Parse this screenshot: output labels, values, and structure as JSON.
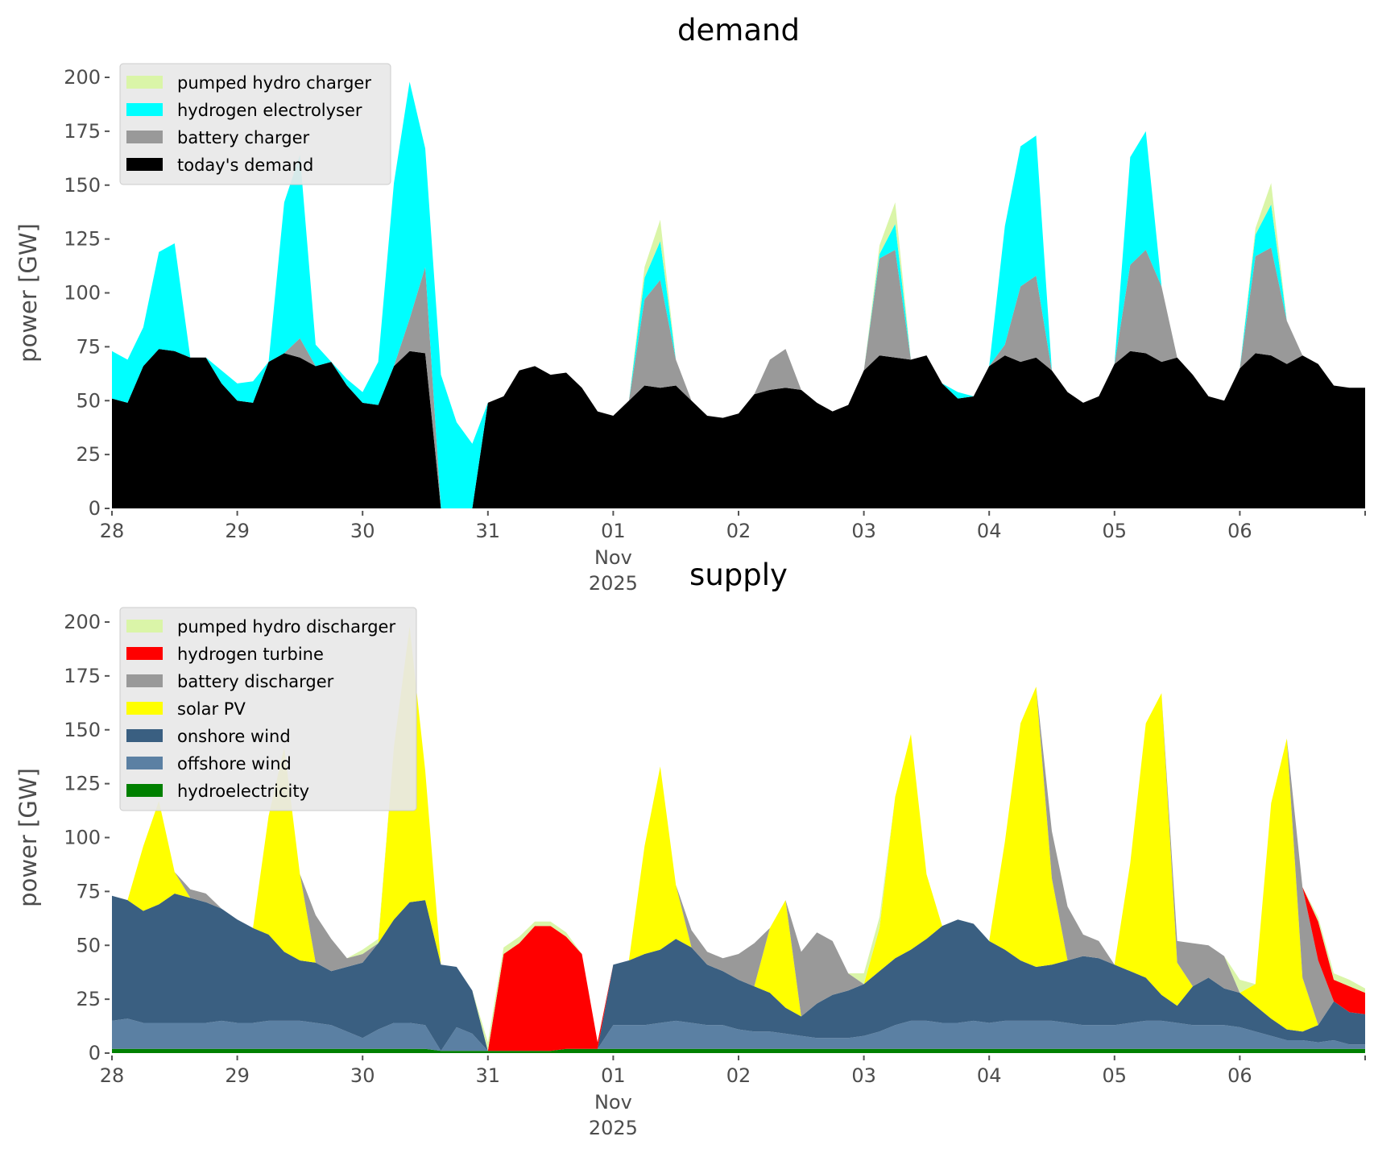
{
  "chart_data": [
    {
      "type": "area",
      "stacked": true,
      "title": "demand",
      "xlabel": "",
      "ylabel": "power [GW]",
      "ylim": [
        0,
        200
      ],
      "yticks": [
        "0",
        "25",
        "50",
        "75",
        "100",
        "125",
        "150",
        "175",
        "200"
      ],
      "xticks": [
        "28",
        "29",
        "30",
        "31",
        "01",
        "02",
        "03",
        "04",
        "05",
        "06"
      ],
      "xtick_sub": [
        "Nov",
        "2025"
      ],
      "x_unit": "hours since 28 Oct 2025 00:00 (3-hourly samples)",
      "grid": false,
      "legend_position": "top-left",
      "series": [
        {
          "name": "today's demand",
          "color": "#000000",
          "values": [
            51,
            49,
            66,
            74,
            73,
            70,
            70,
            58,
            50,
            49,
            68,
            72,
            70,
            66,
            68,
            57,
            49,
            48,
            66,
            73,
            72,
            0,
            0,
            0,
            49,
            52,
            64,
            66,
            62,
            63,
            56,
            45,
            43,
            50,
            57,
            56,
            57,
            50,
            43,
            42,
            44,
            53,
            55,
            56,
            55,
            49,
            45,
            48,
            64,
            71,
            70,
            69,
            71,
            58,
            51,
            52,
            66,
            71,
            68,
            70,
            64,
            54,
            49,
            52,
            67,
            73,
            72,
            68,
            70,
            62,
            52,
            50,
            65,
            72,
            71,
            67,
            71,
            67,
            57,
            56,
            56
          ]
        },
        {
          "name": "battery charger",
          "color": "#999999",
          "values": [
            0,
            0,
            0,
            0,
            0,
            0,
            0,
            0,
            0,
            0,
            0,
            0,
            9,
            0,
            0,
            0,
            0,
            0,
            0,
            15,
            40,
            0,
            0,
            0,
            0,
            0,
            0,
            0,
            0,
            0,
            0,
            0,
            0,
            0,
            40,
            50,
            12,
            0,
            0,
            0,
            0,
            0,
            14,
            18,
            0,
            0,
            0,
            0,
            0,
            45,
            50,
            0,
            0,
            0,
            0,
            0,
            0,
            5,
            35,
            38,
            0,
            0,
            0,
            0,
            0,
            40,
            48,
            35,
            0,
            0,
            0,
            0,
            0,
            45,
            50,
            20,
            0,
            0,
            0,
            0,
            0
          ]
        },
        {
          "name": "hydrogen electrolyser",
          "color": "#00ffff",
          "values": [
            22,
            20,
            18,
            45,
            50,
            0,
            0,
            6,
            8,
            10,
            0,
            70,
            85,
            10,
            0,
            3,
            5,
            20,
            85,
            110,
            55,
            62,
            40,
            30,
            0,
            0,
            0,
            0,
            0,
            0,
            0,
            0,
            0,
            0,
            10,
            18,
            0,
            0,
            0,
            0,
            0,
            0,
            0,
            0,
            0,
            0,
            0,
            0,
            0,
            2,
            12,
            0,
            0,
            0,
            3,
            0,
            0,
            55,
            65,
            65,
            0,
            0,
            0,
            0,
            0,
            50,
            55,
            0,
            0,
            0,
            0,
            0,
            0,
            10,
            20,
            0,
            0,
            0,
            0,
            0,
            0
          ]
        },
        {
          "name": "pumped hydro charger",
          "color": "#daf5a8",
          "values": [
            0,
            0,
            0,
            0,
            0,
            0,
            0,
            0,
            0,
            0,
            0,
            0,
            0,
            0,
            0,
            0,
            0,
            0,
            0,
            0,
            0,
            0,
            0,
            0,
            0,
            0,
            0,
            0,
            0,
            0,
            0,
            0,
            0,
            0,
            5,
            10,
            0,
            0,
            0,
            0,
            0,
            0,
            0,
            0,
            0,
            0,
            0,
            0,
            0,
            4,
            10,
            0,
            0,
            0,
            0,
            0,
            0,
            0,
            0,
            0,
            0,
            0,
            0,
            0,
            0,
            0,
            0,
            0,
            0,
            0,
            0,
            0,
            0,
            3,
            10,
            0,
            0,
            0,
            0,
            0,
            0
          ]
        }
      ]
    },
    {
      "type": "area",
      "stacked": true,
      "title": "supply",
      "xlabel": "",
      "ylabel": "power [GW]",
      "ylim": [
        0,
        200
      ],
      "yticks": [
        "0",
        "25",
        "50",
        "75",
        "100",
        "125",
        "150",
        "175",
        "200"
      ],
      "xticks": [
        "28",
        "29",
        "30",
        "31",
        "01",
        "02",
        "03",
        "04",
        "05",
        "06"
      ],
      "xtick_sub": [
        "Nov",
        "2025"
      ],
      "x_unit": "hours since 28 Oct 2025 00:00 (3-hourly samples)",
      "grid": false,
      "legend_position": "top-left",
      "series": [
        {
          "name": "hydroelectricity",
          "color": "#008000",
          "values": [
            2,
            2,
            2,
            2,
            2,
            2,
            2,
            2,
            2,
            2,
            2,
            2,
            2,
            2,
            2,
            2,
            2,
            2,
            2,
            2,
            2,
            1,
            1,
            1,
            1,
            1,
            1,
            1,
            1,
            2,
            2,
            2,
            2,
            2,
            2,
            2,
            2,
            2,
            2,
            2,
            2,
            2,
            2,
            2,
            2,
            2,
            2,
            2,
            2,
            2,
            2,
            2,
            2,
            2,
            2,
            2,
            2,
            2,
            2,
            2,
            2,
            2,
            2,
            2,
            2,
            2,
            2,
            2,
            2,
            2,
            2,
            2,
            2,
            2,
            2,
            2,
            2,
            2,
            2,
            2,
            2
          ]
        },
        {
          "name": "offshore wind",
          "color": "#5b80a3",
          "values": [
            13,
            14,
            12,
            12,
            12,
            12,
            12,
            13,
            12,
            12,
            13,
            13,
            13,
            12,
            11,
            8,
            5,
            9,
            12,
            12,
            11,
            0,
            11,
            8,
            0,
            0,
            0,
            0,
            0,
            0,
            0,
            0,
            11,
            11,
            11,
            12,
            13,
            12,
            11,
            11,
            9,
            8,
            8,
            7,
            6,
            5,
            5,
            5,
            6,
            8,
            11,
            13,
            13,
            12,
            12,
            13,
            12,
            13,
            13,
            13,
            13,
            12,
            11,
            11,
            11,
            12,
            13,
            13,
            12,
            11,
            11,
            11,
            10,
            8,
            6,
            4,
            4,
            3,
            4,
            2,
            2
          ]
        },
        {
          "name": "onshore wind",
          "color": "#3a5f81",
          "values": [
            58,
            55,
            52,
            55,
            60,
            58,
            56,
            52,
            48,
            44,
            40,
            32,
            28,
            28,
            25,
            30,
            35,
            40,
            48,
            56,
            58,
            40,
            28,
            20,
            0,
            0,
            0,
            0,
            0,
            0,
            0,
            0,
            28,
            30,
            33,
            34,
            38,
            35,
            28,
            25,
            23,
            21,
            18,
            12,
            9,
            16,
            20,
            22,
            24,
            28,
            31,
            33,
            38,
            45,
            48,
            45,
            38,
            33,
            28,
            25,
            26,
            29,
            32,
            31,
            28,
            24,
            20,
            12,
            8,
            18,
            22,
            17,
            16,
            12,
            8,
            5,
            4,
            8,
            18,
            15,
            14
          ]
        },
        {
          "name": "solar PV",
          "color": "#ffff00",
          "values": [
            0,
            0,
            30,
            48,
            10,
            0,
            0,
            0,
            0,
            0,
            55,
            95,
            40,
            0,
            0,
            0,
            0,
            0,
            80,
            128,
            60,
            0,
            0,
            0,
            0,
            0,
            0,
            0,
            0,
            0,
            0,
            0,
            0,
            0,
            50,
            85,
            25,
            0,
            0,
            0,
            0,
            0,
            30,
            50,
            0,
            0,
            0,
            0,
            0,
            20,
            75,
            100,
            30,
            0,
            0,
            0,
            0,
            50,
            110,
            130,
            40,
            0,
            0,
            0,
            0,
            50,
            118,
            140,
            20,
            0,
            0,
            0,
            0,
            10,
            100,
            135,
            25,
            0,
            0,
            0,
            0
          ]
        },
        {
          "name": "battery discharger",
          "color": "#999999",
          "values": [
            0,
            0,
            0,
            0,
            0,
            4,
            4,
            0,
            0,
            0,
            0,
            0,
            0,
            22,
            15,
            4,
            4,
            0,
            0,
            0,
            0,
            0,
            0,
            0,
            0,
            0,
            0,
            0,
            0,
            0,
            0,
            0,
            0,
            0,
            0,
            0,
            0,
            8,
            6,
            6,
            12,
            20,
            0,
            0,
            30,
            33,
            25,
            8,
            0,
            0,
            0,
            0,
            0,
            0,
            0,
            0,
            0,
            0,
            0,
            0,
            22,
            25,
            10,
            8,
            0,
            0,
            0,
            0,
            10,
            20,
            15,
            15,
            0,
            0,
            0,
            0,
            42,
            30,
            0,
            0,
            0
          ]
        },
        {
          "name": "hydrogen turbine",
          "color": "#ff0000",
          "values": [
            0,
            0,
            0,
            0,
            0,
            0,
            0,
            0,
            0,
            0,
            0,
            0,
            0,
            0,
            0,
            0,
            0,
            0,
            0,
            0,
            0,
            0,
            0,
            0,
            0,
            45,
            50,
            58,
            58,
            52,
            44,
            3,
            0,
            0,
            0,
            0,
            0,
            0,
            0,
            0,
            0,
            0,
            0,
            0,
            0,
            0,
            0,
            0,
            0,
            0,
            0,
            0,
            0,
            0,
            0,
            0,
            0,
            0,
            0,
            0,
            0,
            0,
            0,
            0,
            0,
            0,
            0,
            0,
            0,
            0,
            0,
            0,
            0,
            0,
            0,
            0,
            0,
            18,
            10,
            12,
            10
          ]
        },
        {
          "name": "pumped hydro discharger",
          "color": "#daf5a8",
          "values": [
            0,
            0,
            0,
            0,
            0,
            0,
            0,
            0,
            0,
            0,
            0,
            0,
            0,
            0,
            0,
            0,
            2,
            2,
            0,
            0,
            0,
            0,
            0,
            0,
            4,
            3,
            3,
            2,
            2,
            2,
            0,
            0,
            0,
            0,
            0,
            0,
            0,
            0,
            0,
            0,
            0,
            0,
            0,
            0,
            0,
            0,
            0,
            0,
            5,
            5,
            0,
            0,
            0,
            0,
            0,
            0,
            0,
            0,
            0,
            0,
            0,
            0,
            0,
            0,
            0,
            0,
            0,
            0,
            0,
            0,
            0,
            0,
            6,
            0,
            0,
            0,
            0,
            2,
            3,
            3,
            2
          ]
        }
      ]
    }
  ],
  "legends": {
    "demand": [
      "pumped hydro charger",
      "hydrogen electrolyser",
      "battery charger",
      "today's demand"
    ],
    "supply": [
      "pumped hydro discharger",
      "hydrogen turbine",
      "battery discharger",
      "solar PV",
      "onshore wind",
      "offshore wind",
      "hydroelectricity"
    ]
  }
}
